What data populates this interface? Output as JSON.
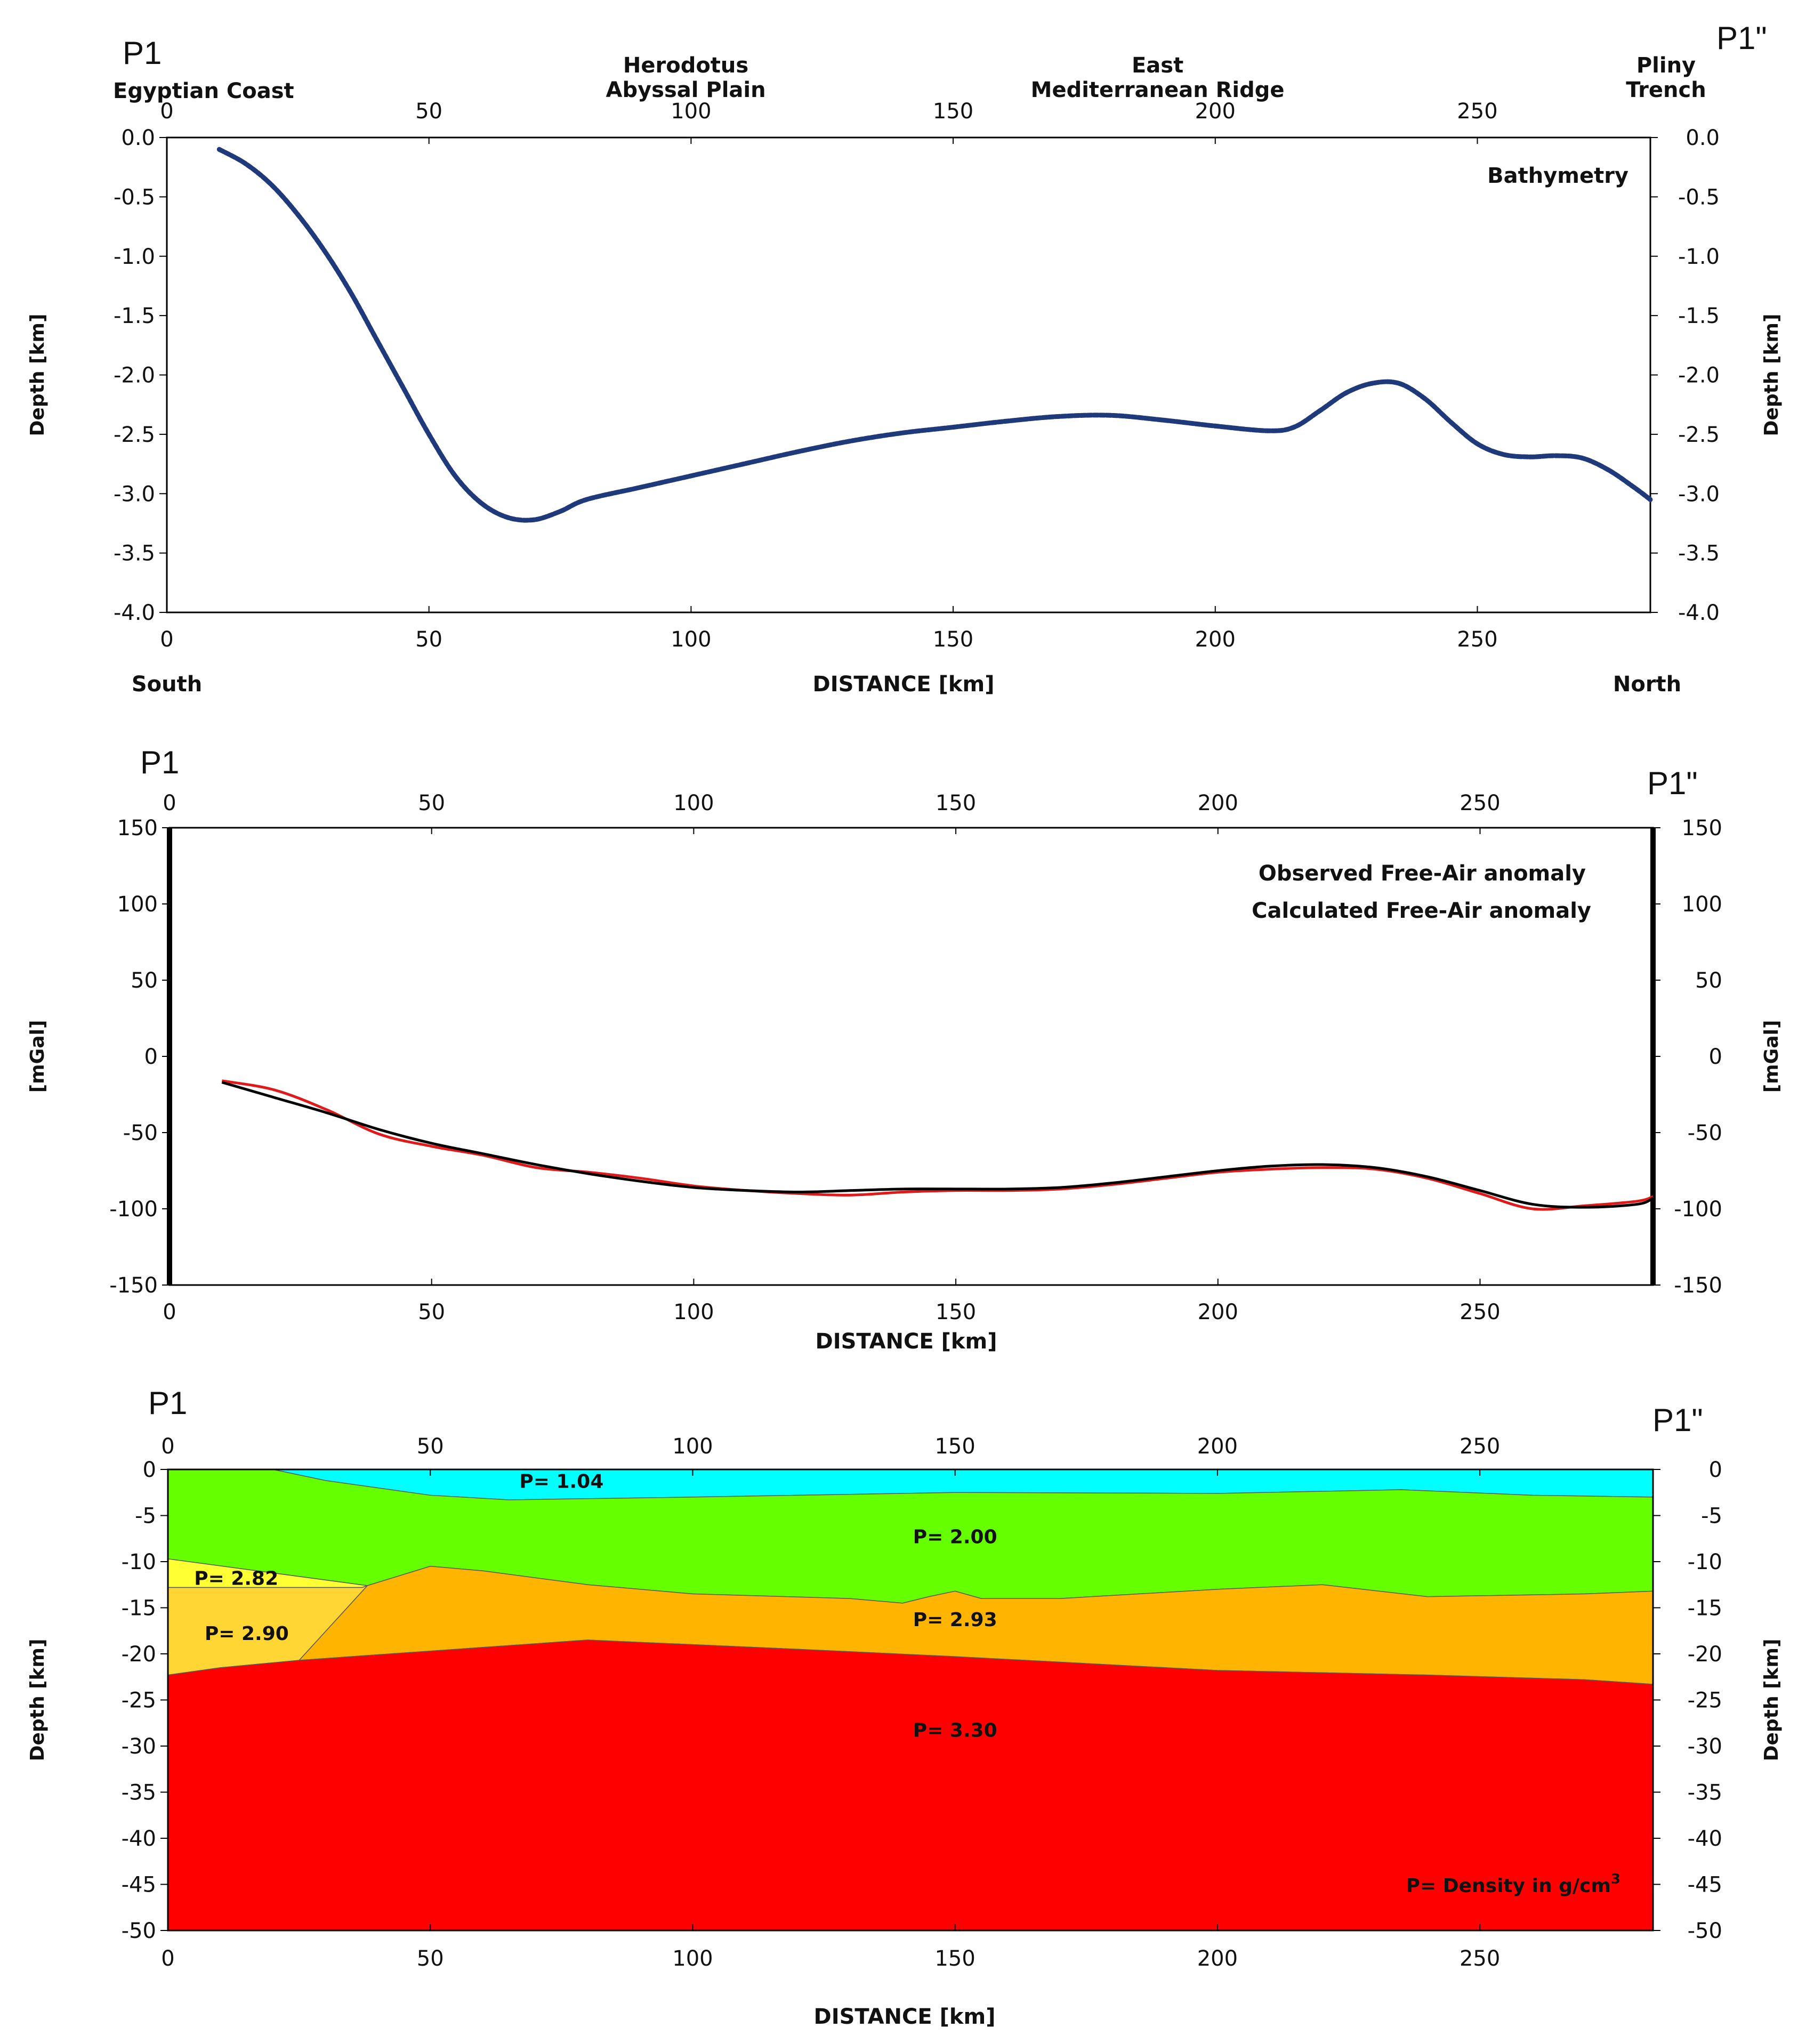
{
  "colors": {
    "bathymetry_line": "#1f3a7a",
    "observed": "#000000",
    "calculated": "#e0191b",
    "water": "#00ffff",
    "sediment": "#66ff00",
    "upper_crust": "#ffb400",
    "block_282": "#ffff33",
    "block_290": "#ffd633",
    "mantle": "#ff0000"
  },
  "chart_data": [
    {
      "id": "bathymetry",
      "type": "line",
      "title": "Bathymetry",
      "profile_start": "P1",
      "profile_end": "P1\"",
      "top_labels": [
        {
          "text": "Egyptian Coast",
          "lines": [
            "Egyptian Coast"
          ],
          "x": 7
        },
        {
          "text": "Herodotus Abyssal Plain",
          "lines": [
            "Herodotus",
            "Abyssal Plain"
          ],
          "x": 99
        },
        {
          "text": "East Mediterranean Ridge",
          "lines": [
            "East",
            "Mediterranean Ridge"
          ],
          "x": 189
        },
        {
          "text": "Pliny Trench",
          "lines": [
            "Pliny",
            "Trench"
          ],
          "x": 286
        }
      ],
      "xlabel": "DISTANCE [km]",
      "xlabel_left": "South",
      "xlabel_right": "North",
      "ylabel": "Depth [km]",
      "xlim": [
        0,
        283
      ],
      "ylim": [
        -4.0,
        0.0
      ],
      "xticks": [
        0,
        50,
        100,
        150,
        200,
        250
      ],
      "yticks": [
        "0.0",
        "-0.5",
        "-1.0",
        "-1.5",
        "-2.0",
        "-2.5",
        "-3.0",
        "-3.5",
        "-4.0"
      ],
      "series": [
        {
          "name": "Bathymetry",
          "x": [
            10,
            15,
            20,
            25,
            30,
            35,
            40,
            45,
            50,
            55,
            60,
            65,
            70,
            75,
            80,
            90,
            100,
            110,
            120,
            130,
            140,
            150,
            160,
            170,
            180,
            190,
            200,
            210,
            215,
            220,
            225,
            230,
            235,
            240,
            245,
            250,
            255,
            260,
            265,
            270,
            275,
            280,
            283
          ],
          "y": [
            -0.1,
            -0.22,
            -0.4,
            -0.65,
            -0.95,
            -1.3,
            -1.7,
            -2.1,
            -2.5,
            -2.85,
            -3.08,
            -3.2,
            -3.22,
            -3.15,
            -3.05,
            -2.95,
            -2.85,
            -2.75,
            -2.65,
            -2.56,
            -2.49,
            -2.44,
            -2.39,
            -2.35,
            -2.34,
            -2.38,
            -2.43,
            -2.47,
            -2.44,
            -2.3,
            -2.15,
            -2.07,
            -2.07,
            -2.2,
            -2.4,
            -2.58,
            -2.67,
            -2.69,
            -2.68,
            -2.7,
            -2.8,
            -2.95,
            -3.05
          ]
        }
      ]
    },
    {
      "id": "gravity",
      "type": "line",
      "profile_start": "P1",
      "profile_end": "P1\"",
      "xlabel": "DISTANCE [km]",
      "ylabel": "[mGal]",
      "xlim": [
        0,
        283
      ],
      "ylim": [
        -150,
        150
      ],
      "xticks": [
        0,
        50,
        100,
        150,
        200,
        250
      ],
      "yticks": [
        150,
        100,
        50,
        0,
        -50,
        -100,
        -150
      ],
      "series": [
        {
          "name": "Observed Free-Air anomaly",
          "x": [
            10,
            20,
            30,
            40,
            50,
            60,
            70,
            80,
            90,
            100,
            110,
            120,
            130,
            140,
            150,
            160,
            170,
            180,
            190,
            200,
            210,
            220,
            230,
            240,
            250,
            260,
            270,
            280,
            283
          ],
          "y": [
            -17,
            -27,
            -37,
            -48,
            -57,
            -64,
            -71,
            -77,
            -82,
            -86,
            -88,
            -89,
            -88,
            -87,
            -87,
            -87,
            -86,
            -83,
            -79,
            -75,
            -72,
            -71,
            -73,
            -79,
            -88,
            -97,
            -99,
            -97,
            -93
          ]
        },
        {
          "name": "Calculated Free-Air anomaly",
          "x": [
            10,
            20,
            30,
            40,
            50,
            60,
            70,
            80,
            90,
            100,
            110,
            120,
            130,
            140,
            150,
            160,
            170,
            180,
            190,
            200,
            210,
            220,
            230,
            240,
            250,
            260,
            270,
            280,
            283
          ],
          "y": [
            -16,
            -22,
            -35,
            -51,
            -59,
            -65,
            -73,
            -76,
            -80,
            -85,
            -88,
            -90,
            -91,
            -89,
            -88,
            -88,
            -87,
            -84,
            -80,
            -76,
            -74,
            -73,
            -74,
            -80,
            -90,
            -100,
            -98,
            -95,
            -92
          ]
        }
      ]
    },
    {
      "id": "density_model",
      "type": "area",
      "profile_start": "P1",
      "profile_end": "P1\"",
      "xlabel": "DISTANCE [km]",
      "ylabel": "Depth [km]",
      "xlim": [
        0,
        283
      ],
      "ylim": [
        -50,
        0
      ],
      "xticks": [
        0,
        50,
        100,
        150,
        200,
        250
      ],
      "yticks": [
        0,
        -5,
        -10,
        -15,
        -20,
        -25,
        -30,
        -35,
        -40,
        -45,
        -50
      ],
      "annotation": "P= Density in g/cm",
      "annotation_sup": "3",
      "layers": [
        {
          "label": "P= 1.04",
          "density": 1.04,
          "label_pos": [
            75,
            -2
          ],
          "color_key": "water",
          "polygon": [
            [
              0,
              0
            ],
            [
              283,
              0
            ],
            [
              283,
              -3
            ],
            [
              260,
              -2.8
            ],
            [
              235,
              -2.2
            ],
            [
              200,
              -2.6
            ],
            [
              150,
              -2.5
            ],
            [
              120,
              -2.8
            ],
            [
              100,
              -3
            ],
            [
              65,
              -3.3
            ],
            [
              50,
              -2.8
            ],
            [
              30,
              -1.2
            ],
            [
              20,
              0
            ]
          ]
        },
        {
          "label": "P= 2.00",
          "density": 2.0,
          "label_pos": [
            150,
            -8
          ],
          "color_key": "sediment",
          "polygon": [
            [
              0,
              0
            ],
            [
              20,
              0
            ],
            [
              30,
              -1.2
            ],
            [
              50,
              -2.8
            ],
            [
              65,
              -3.3
            ],
            [
              100,
              -3
            ],
            [
              120,
              -2.8
            ],
            [
              150,
              -2.5
            ],
            [
              200,
              -2.6
            ],
            [
              235,
              -2.2
            ],
            [
              260,
              -2.8
            ],
            [
              283,
              -3
            ],
            [
              283,
              -13.2
            ],
            [
              270,
              -13.5
            ],
            [
              240,
              -13.8
            ],
            [
              220,
              -12.5
            ],
            [
              200,
              -13
            ],
            [
              170,
              -14
            ],
            [
              155,
              -14
            ],
            [
              150,
              -13.2
            ],
            [
              145,
              -13.8
            ],
            [
              140,
              -14.5
            ],
            [
              130,
              -14
            ],
            [
              100,
              -13.5
            ],
            [
              80,
              -12.5
            ],
            [
              60,
              -11
            ],
            [
              50,
              -10.5
            ],
            [
              38,
              -12.6
            ],
            [
              0,
              -9.7
            ]
          ]
        },
        {
          "label": "P= 2.93",
          "density": 2.93,
          "label_pos": [
            150,
            -17
          ],
          "color_key": "upper_crust",
          "polygon": [
            [
              38,
              -12.6
            ],
            [
              50,
              -10.5
            ],
            [
              60,
              -11
            ],
            [
              80,
              -12.5
            ],
            [
              100,
              -13.5
            ],
            [
              130,
              -14
            ],
            [
              140,
              -14.5
            ],
            [
              145,
              -13.8
            ],
            [
              150,
              -13.2
            ],
            [
              155,
              -14
            ],
            [
              170,
              -14
            ],
            [
              200,
              -13
            ],
            [
              220,
              -12.5
            ],
            [
              240,
              -13.8
            ],
            [
              270,
              -13.5
            ],
            [
              283,
              -13.2
            ],
            [
              283,
              -23.3
            ],
            [
              270,
              -22.8
            ],
            [
              240,
              -22.3
            ],
            [
              200,
              -21.8
            ],
            [
              150,
              -20.3
            ],
            [
              120,
              -19.5
            ],
            [
              80,
              -18.5
            ],
            [
              60,
              -19.3
            ],
            [
              25,
              -20.7
            ]
          ]
        },
        {
          "label": "P= 2.82",
          "density": 2.82,
          "label_pos": [
            5,
            -12.5
          ],
          "color_key": "block_282",
          "polygon": [
            [
              0,
              -9.7
            ],
            [
              38,
              -12.6
            ],
            [
              37,
              -12.8
            ],
            [
              0,
              -12.8
            ]
          ]
        },
        {
          "label": "P= 2.90",
          "density": 2.9,
          "label_pos": [
            7,
            -18.5
          ],
          "color_key": "block_290",
          "polygon": [
            [
              0,
              -12.8
            ],
            [
              37,
              -12.8
            ],
            [
              38,
              -12.6
            ],
            [
              25,
              -20.7
            ],
            [
              10,
              -21.5
            ],
            [
              0,
              -22.3
            ]
          ]
        },
        {
          "label": "P= 3.30",
          "density": 3.3,
          "label_pos": [
            150,
            -29
          ],
          "color_key": "mantle",
          "polygon": [
            [
              0,
              -22.3
            ],
            [
              10,
              -21.5
            ],
            [
              25,
              -20.7
            ],
            [
              60,
              -19.3
            ],
            [
              80,
              -18.5
            ],
            [
              120,
              -19.5
            ],
            [
              150,
              -20.3
            ],
            [
              200,
              -21.8
            ],
            [
              240,
              -22.3
            ],
            [
              270,
              -22.8
            ],
            [
              283,
              -23.3
            ],
            [
              283,
              -50
            ],
            [
              0,
              -50
            ]
          ]
        }
      ]
    }
  ]
}
